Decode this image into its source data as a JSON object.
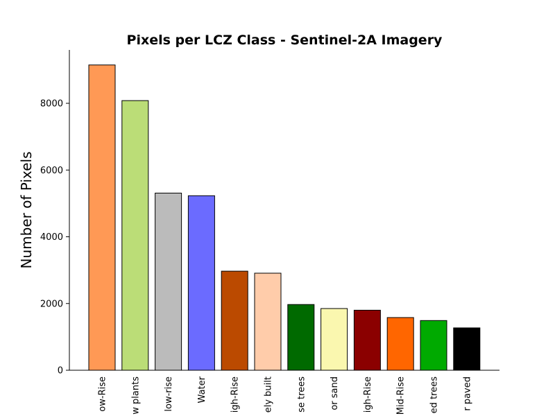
{
  "chart_data": {
    "type": "bar",
    "title": "Pixels per LCZ Class - Sentinel-2A Imagery",
    "xlabel": "",
    "ylabel": "Number of Pixels",
    "ylim": [
      0,
      9600
    ],
    "yticks": [
      0,
      2000,
      4000,
      6000,
      8000
    ],
    "grid": false,
    "categories": [
      "ow-Rise",
      "w plants",
      "low-rise",
      "Water",
      "igh-Rise",
      "ely built",
      "se trees",
      "or sand",
      "igh-Rise",
      "Mid-Rise",
      "ed trees",
      "r paved"
    ],
    "values": [
      9150,
      8080,
      5310,
      5230,
      2970,
      2910,
      1970,
      1850,
      1800,
      1580,
      1490,
      1270
    ],
    "colors": [
      "#FF9955",
      "#BBDD77",
      "#BBBBBB",
      "#6B6BFF",
      "#BB4A00",
      "#FFCCAA",
      "#006A00",
      "#FAF7AF",
      "#8B0000",
      "#FF6600",
      "#00AA00",
      "#000000"
    ]
  }
}
